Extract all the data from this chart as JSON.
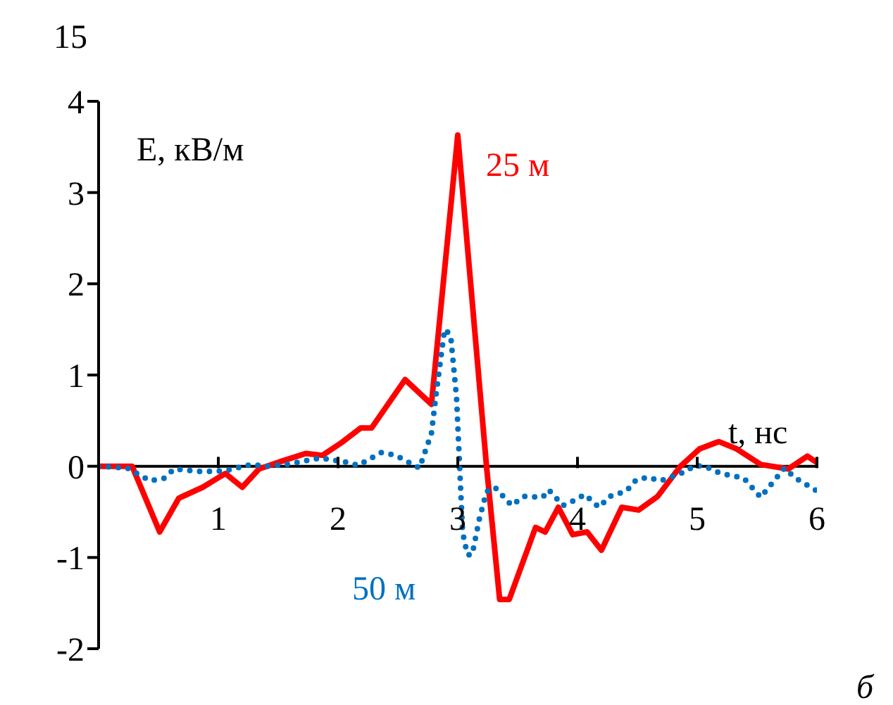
{
  "chart_data": {
    "type": "line",
    "ylabel": "E, кВ/м",
    "xlabel": "t, нс",
    "annotations": [
      "15",
      "б"
    ],
    "xlim": [
      0,
      6
    ],
    "xticks": [
      1,
      2,
      3,
      4,
      5,
      6
    ],
    "ylim": [
      -2,
      4
    ],
    "yticks": [
      -2,
      -1,
      0,
      1,
      2,
      3,
      4
    ],
    "grid": false,
    "legend": false,
    "marker": "none",
    "series": [
      {
        "name": "25 м",
        "color": "#ff0000",
        "line_style": "solid",
        "x": [
          0,
          0.28,
          0.51,
          0.67,
          0.87,
          1.02,
          1.06,
          1.2,
          1.34,
          1.54,
          1.73,
          1.87,
          2.03,
          2.19,
          2.28,
          2.56,
          2.78,
          3.0,
          3.24,
          3.35,
          3.43,
          3.65,
          3.73,
          3.84,
          3.96,
          4.08,
          4.2,
          4.37,
          4.51,
          4.67,
          4.86,
          5.02,
          5.18,
          5.33,
          5.53,
          5.76,
          5.92,
          6.0
        ],
        "values": [
          0,
          0,
          -0.72,
          -0.35,
          -0.23,
          -0.11,
          -0.08,
          -0.23,
          -0.03,
          0.06,
          0.14,
          0.12,
          0.26,
          0.42,
          0.42,
          0.95,
          0.68,
          3.63,
          0,
          -1.46,
          -1.46,
          -0.67,
          -0.72,
          -0.45,
          -0.75,
          -0.72,
          -0.92,
          -0.45,
          -0.48,
          -0.33,
          0,
          0.19,
          0.27,
          0.19,
          0.02,
          -0.03,
          0.11,
          0.04
        ]
      },
      {
        "name": "50 м",
        "color": "#0070c0",
        "line_style": "dotted",
        "x": [
          0,
          0.24,
          0.43,
          0.55,
          0.63,
          0.87,
          1.06,
          1.18,
          1.28,
          1.4,
          1.57,
          1.85,
          2.05,
          2.17,
          2.36,
          2.48,
          2.68,
          2.78,
          2.82,
          2.89,
          2.94,
          2.99,
          3.01,
          3.02,
          3.04,
          3.08,
          3.12,
          3.18,
          3.24,
          3.31,
          3.45,
          3.55,
          3.71,
          3.76,
          3.88,
          3.98,
          4.06,
          4.18,
          4.27,
          4.41,
          4.49,
          4.59,
          4.69,
          4.78,
          4.9,
          4.98,
          5.08,
          5.2,
          5.39,
          5.53,
          5.61,
          5.73,
          5.82,
          6.0
        ],
        "values": [
          0,
          -0.02,
          -0.16,
          -0.13,
          -0.03,
          -0.06,
          -0.05,
          -0.01,
          0.02,
          0,
          0.02,
          0.09,
          0.05,
          0.01,
          0.15,
          0.12,
          -0.02,
          0.36,
          0.8,
          1.5,
          1.44,
          0.75,
          0.16,
          -0.13,
          -0.72,
          -0.97,
          -0.97,
          -0.58,
          -0.28,
          -0.23,
          -0.43,
          -0.33,
          -0.34,
          -0.26,
          -0.43,
          -0.37,
          -0.31,
          -0.45,
          -0.33,
          -0.27,
          -0.15,
          -0.12,
          -0.16,
          -0.12,
          -0.06,
          0.01,
          -0.01,
          -0.08,
          -0.13,
          -0.34,
          -0.21,
          -0.02,
          -0.13,
          -0.27
        ]
      }
    ]
  }
}
